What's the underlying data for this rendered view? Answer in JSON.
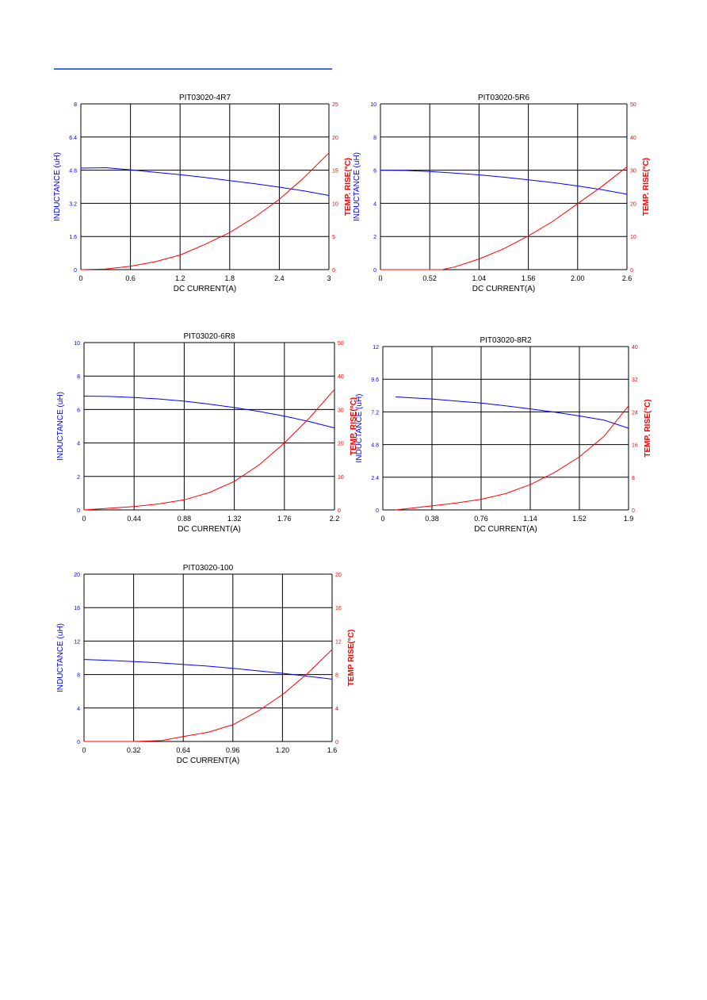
{
  "colors": {
    "inductance": "#0000ff",
    "temp_rise": "#ff0000",
    "grid": "#000000",
    "rule": "#3f6fd8"
  },
  "chart_data": [
    {
      "type": "line",
      "title": "PIT03020-4R7",
      "xlabel": "DC CURRENT(A)",
      "ylabel_left": "INDUCTANCE (uH)",
      "ylabel_right": "TEMP. RISE(°C)",
      "xlim": [
        0,
        3
      ],
      "ylim_left": [
        0,
        8
      ],
      "ylim_right": [
        0,
        25
      ],
      "x_ticks": [
        "0",
        "0.6",
        "1.2",
        "1.8",
        "2.4",
        "3"
      ],
      "y_left_ticks": [
        "0",
        "1.6",
        "3.2",
        "4.8",
        "6.4",
        "8"
      ],
      "y_right_ticks": [
        "0",
        "5",
        "10",
        "15",
        "20",
        "25"
      ],
      "grid": true,
      "series": [
        {
          "axis": "left",
          "color": "inductance",
          "x": [
            0,
            0.3,
            0.6,
            0.9,
            1.2,
            1.5,
            1.8,
            2.1,
            2.4,
            2.7,
            3.0
          ],
          "y": [
            4.9,
            4.92,
            4.82,
            4.7,
            4.58,
            4.45,
            4.3,
            4.15,
            3.98,
            3.8,
            3.58
          ]
        },
        {
          "axis": "right",
          "color": "temp_rise",
          "x": [
            0,
            0.3,
            0.6,
            0.9,
            1.2,
            1.5,
            1.8,
            2.1,
            2.4,
            2.7,
            3.0
          ],
          "y": [
            0,
            0.1,
            0.5,
            1.2,
            2.2,
            3.8,
            5.6,
            7.9,
            10.6,
            13.9,
            17.6
          ]
        }
      ]
    },
    {
      "type": "line",
      "title": "PIT03020-5R6",
      "xlabel": "DC CURRENT(A)",
      "ylabel_left": "INDUCTANCE (uH)",
      "ylabel_right": "TEMP. RISE(°C)",
      "xlim": [
        0,
        2.6
      ],
      "ylim_left": [
        0,
        10
      ],
      "ylim_right": [
        0,
        50
      ],
      "x_ticks": [
        "0",
        "0.52",
        "1.04",
        "1.56",
        "2.00",
        "2.6"
      ],
      "y_left_ticks": [
        "0",
        "2",
        "4",
        "6",
        "8",
        "10"
      ],
      "y_right_ticks": [
        "0",
        "10",
        "20",
        "30",
        "40",
        "50"
      ],
      "grid": true,
      "series": [
        {
          "axis": "left",
          "color": "inductance",
          "x": [
            0,
            0.26,
            0.52,
            0.78,
            1.04,
            1.3,
            1.56,
            1.82,
            2.08,
            2.34,
            2.6
          ],
          "y": [
            6.0,
            5.98,
            5.92,
            5.83,
            5.72,
            5.58,
            5.42,
            5.25,
            5.05,
            4.82,
            4.55
          ]
        },
        {
          "axis": "right",
          "color": "temp_rise",
          "x": [
            0,
            0.26,
            0.52,
            0.65,
            0.78,
            1.04,
            1.3,
            1.56,
            1.82,
            2.08,
            2.34,
            2.6
          ],
          "y": [
            0,
            0,
            0,
            0,
            0.8,
            3.2,
            6.3,
            10.2,
            14.6,
            19.9,
            25.2,
            31.0
          ]
        }
      ]
    },
    {
      "type": "line",
      "title": "PIT03020-6R8",
      "xlabel": "DC CURRENT(A)",
      "ylabel_left": "INDUCTANCE (uH)",
      "ylabel_right": "TEMP. RISE(°C)",
      "xlim": [
        0,
        2.2
      ],
      "ylim_left": [
        0,
        10
      ],
      "ylim_right": [
        0,
        50
      ],
      "x_ticks": [
        "0",
        "0.44",
        "0.88",
        "1.32",
        "1.76",
        "2.2"
      ],
      "y_left_ticks": [
        "0",
        "2",
        "4",
        "6",
        "8",
        "10"
      ],
      "y_right_ticks": [
        "0",
        "10",
        "20",
        "30",
        "40",
        "50"
      ],
      "grid": true,
      "series": [
        {
          "axis": "left",
          "color": "inductance",
          "x": [
            0,
            0.22,
            0.44,
            0.66,
            0.88,
            1.1,
            1.32,
            1.54,
            1.76,
            1.98,
            2.2
          ],
          "y": [
            6.8,
            6.78,
            6.72,
            6.63,
            6.5,
            6.32,
            6.12,
            5.88,
            5.6,
            5.28,
            4.9
          ]
        },
        {
          "axis": "right",
          "color": "temp_rise",
          "x": [
            0,
            0.22,
            0.44,
            0.66,
            0.88,
            1.1,
            1.32,
            1.54,
            1.76,
            1.98,
            2.2
          ],
          "y": [
            0,
            0.5,
            1.0,
            1.8,
            3.0,
            5.2,
            8.5,
            13.5,
            20.0,
            27.5,
            36.0
          ]
        }
      ]
    },
    {
      "type": "line",
      "title": "PIT03020-8R2",
      "xlabel": "DC CURRENT(A)",
      "ylabel_left": "INDUCTANCE (uH)",
      "ylabel_right": "TEMP. RISE(°C)",
      "xlim": [
        0,
        1.9
      ],
      "ylim_left": [
        0,
        12
      ],
      "ylim_right": [
        0,
        40
      ],
      "x_ticks": [
        "0",
        "0.38",
        "0.76",
        "1.14",
        "1.52",
        "1.9"
      ],
      "y_left_ticks": [
        "0",
        "2.4",
        "4.8",
        "7.2",
        "9.6",
        "12"
      ],
      "y_right_ticks": [
        "0",
        "8",
        "16",
        "24",
        "32",
        "40"
      ],
      "grid": true,
      "series": [
        {
          "axis": "left",
          "color": "inductance",
          "x": [
            0.1,
            0.38,
            0.57,
            0.76,
            0.95,
            1.14,
            1.33,
            1.52,
            1.71,
            1.9
          ],
          "y": [
            8.3,
            8.15,
            8.0,
            7.85,
            7.65,
            7.42,
            7.18,
            6.9,
            6.6,
            6.0
          ]
        },
        {
          "axis": "right",
          "color": "temp_rise",
          "x": [
            0.1,
            0.38,
            0.57,
            0.76,
            0.95,
            1.14,
            1.33,
            1.52,
            1.71,
            1.9
          ],
          "y": [
            0,
            1.0,
            1.7,
            2.6,
            4.0,
            6.2,
            9.2,
            13.0,
            18.0,
            25.5
          ]
        }
      ]
    },
    {
      "type": "line",
      "title": "PIT03020-100",
      "xlabel": "DC CURRENT(A)",
      "ylabel_left": "INDUCTANCE (uH)",
      "ylabel_right": "TEMP RISE(°C)",
      "xlim": [
        0,
        1.6
      ],
      "ylim_left": [
        0,
        20
      ],
      "ylim_right": [
        0,
        20
      ],
      "x_ticks": [
        "0",
        "0.32",
        "0.64",
        "0.96",
        "1.20",
        "1.6"
      ],
      "y_left_ticks": [
        "0",
        "4",
        "8",
        "12",
        "16",
        "20"
      ],
      "y_right_ticks": [
        "0",
        "4",
        "8",
        "12",
        "16",
        "20"
      ],
      "grid": true,
      "series": [
        {
          "axis": "left",
          "color": "inductance",
          "x": [
            0,
            0.16,
            0.32,
            0.48,
            0.64,
            0.8,
            0.96,
            1.12,
            1.28,
            1.44,
            1.6
          ],
          "y": [
            9.8,
            9.7,
            9.55,
            9.4,
            9.2,
            9.0,
            8.75,
            8.45,
            8.15,
            7.8,
            7.45
          ]
        },
        {
          "axis": "right",
          "color": "temp_rise",
          "x": [
            0,
            0.32,
            0.5,
            0.64,
            0.8,
            0.96,
            1.12,
            1.28,
            1.44,
            1.6
          ],
          "y": [
            0,
            0,
            0.1,
            0.6,
            1.1,
            2.0,
            3.6,
            5.6,
            8.1,
            11.0
          ]
        }
      ]
    }
  ]
}
